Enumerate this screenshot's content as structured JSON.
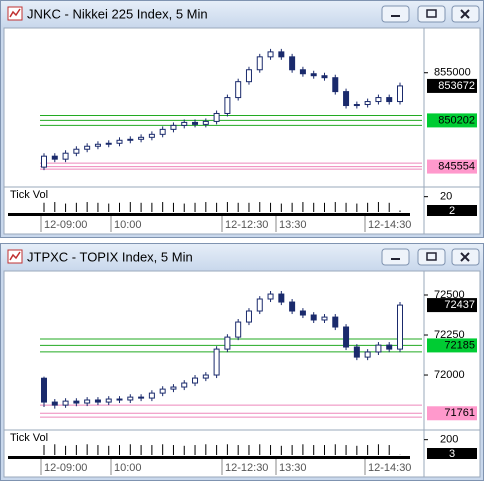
{
  "chart_data": [
    {
      "type": "candlestick",
      "title": "JNKC - Nikkei 225 Index, 5 Min",
      "up_color": "#ffffff",
      "down_color": "#1a2a6c",
      "edge_color": "#1a2a6c",
      "ylim": [
        843700,
        859100
      ],
      "yticks": [
        855000
      ],
      "open": [
        845500,
        846600,
        846300,
        846900,
        847300,
        847600,
        847800,
        847900,
        848200,
        848300,
        848500,
        848800,
        849300,
        849700,
        850000,
        849800,
        850100,
        850900,
        852500,
        854100,
        855300,
        856600,
        857100,
        856600,
        855300,
        854900,
        854700,
        854500,
        853100,
        851700,
        851800,
        852100,
        852500,
        852100
      ],
      "high": [
        846900,
        846900,
        847200,
        847600,
        847900,
        848100,
        848200,
        848500,
        848600,
        848800,
        849100,
        849600,
        850000,
        850300,
        850300,
        850400,
        851200,
        852800,
        854400,
        855600,
        856900,
        857400,
        857400,
        856900,
        855600,
        855200,
        855000,
        854800,
        853400,
        852100,
        852400,
        852800,
        852800,
        854000
      ],
      "low": [
        845200,
        846000,
        846000,
        846600,
        847000,
        847300,
        847500,
        847600,
        847900,
        848000,
        848200,
        848500,
        849000,
        849400,
        849500,
        849500,
        849800,
        850600,
        852200,
        853800,
        855000,
        856300,
        856300,
        855000,
        854600,
        854400,
        854200,
        852800,
        851400,
        851400,
        851500,
        851800,
        851800,
        851800
      ],
      "close": [
        846600,
        846300,
        846900,
        847300,
        847600,
        847800,
        847900,
        848200,
        848300,
        848500,
        848800,
        849300,
        849700,
        850000,
        849800,
        850100,
        850900,
        852500,
        854100,
        855300,
        856600,
        857100,
        856600,
        855300,
        854900,
        854700,
        854500,
        853100,
        851700,
        851800,
        852100,
        852500,
        852100,
        853672
      ],
      "levels": [
        {
          "value": 850700,
          "color": "#22aa22"
        },
        {
          "value": 850202,
          "color": "#22aa22",
          "tag_color": "#00cc33"
        },
        {
          "value": 849700,
          "color": "#22aa22"
        },
        {
          "value": 845900,
          "color": "#ee88bb"
        },
        {
          "value": 845554,
          "color": "#ee88bb",
          "tag_color": "#ff99cc"
        },
        {
          "value": 845300,
          "color": "#ee88bb"
        }
      ],
      "volume": {
        "label": "Tick Vol",
        "ylim": [
          0,
          30
        ],
        "yticks": [
          20
        ],
        "values": [
          12,
          13,
          11,
          12,
          13,
          12,
          11,
          12,
          13,
          12,
          12,
          13,
          12,
          11,
          12,
          13,
          12,
          13,
          12,
          12,
          13,
          12,
          11,
          12,
          13,
          12,
          12,
          13,
          12,
          11,
          12,
          13,
          12,
          2
        ]
      },
      "time_labels": [
        "12-09:00",
        "10:00",
        "12-12:30",
        "13:30",
        "12-14:30"
      ]
    },
    {
      "type": "candlestick",
      "title": "JTPXC - TOPIX Index, 5 Min",
      "up_color": "#ffffff",
      "down_color": "#1a2a6c",
      "edge_color": "#1a2a6c",
      "ylim": [
        71669,
        72625
      ],
      "yticks": [
        72500,
        72250,
        72000
      ],
      "open": [
        71980,
        71831,
        71812,
        71837,
        71825,
        71844,
        71831,
        71850,
        71844,
        71862,
        71856,
        71887,
        71912,
        71925,
        71950,
        71981,
        72000,
        72162,
        72237,
        72331,
        72400,
        72475,
        72506,
        72456,
        72400,
        72375,
        72344,
        72362,
        72300,
        72175,
        72112,
        72144,
        72187,
        72162
      ],
      "high": [
        71990,
        71850,
        71855,
        71855,
        71862,
        71862,
        71868,
        71868,
        71880,
        71880,
        71905,
        71930,
        71943,
        71968,
        72000,
        72018,
        72180,
        72255,
        72350,
        72418,
        72493,
        72525,
        72525,
        72475,
        72418,
        72393,
        72381,
        72381,
        72318,
        72193,
        72162,
        72206,
        72206,
        72456
      ],
      "low": [
        71800,
        71790,
        71795,
        71805,
        71806,
        71812,
        71812,
        71825,
        71825,
        71837,
        71837,
        71868,
        71893,
        71906,
        71931,
        71962,
        71981,
        72143,
        72218,
        72312,
        72381,
        72456,
        72437,
        72381,
        72356,
        72325,
        72325,
        72281,
        72156,
        72093,
        72093,
        72125,
        72143,
        72143
      ],
      "close": [
        71831,
        71812,
        71837,
        71825,
        71844,
        71831,
        71850,
        71844,
        71862,
        71856,
        71887,
        71912,
        71925,
        71950,
        71981,
        72000,
        72162,
        72237,
        72331,
        72400,
        72475,
        72506,
        72456,
        72400,
        72375,
        72344,
        72362,
        72300,
        72175,
        72112,
        72144,
        72187,
        72162,
        72437
      ],
      "levels": [
        {
          "value": 72225,
          "color": "#22aa22"
        },
        {
          "value": 72185,
          "color": "#22aa22",
          "tag_color": "#00cc33"
        },
        {
          "value": 72145,
          "color": "#22aa22"
        },
        {
          "value": 71812,
          "color": "#ee88bb"
        },
        {
          "value": 71761,
          "color": "#ee88bb",
          "tag_color": "#ff99cc"
        },
        {
          "value": 71737,
          "color": "#ee88bb"
        }
      ],
      "volume": {
        "label": "Tick Vol",
        "ylim": [
          0,
          300
        ],
        "yticks": [
          200
        ],
        "values": [
          130,
          140,
          120,
          130,
          140,
          130,
          120,
          130,
          140,
          130,
          130,
          140,
          130,
          120,
          130,
          140,
          130,
          140,
          130,
          130,
          140,
          130,
          120,
          130,
          140,
          130,
          130,
          140,
          130,
          120,
          130,
          140,
          130,
          3
        ]
      },
      "time_labels": [
        "12-09:00",
        "10:00",
        "12-12:30",
        "13:30",
        "12-14:30"
      ]
    }
  ]
}
